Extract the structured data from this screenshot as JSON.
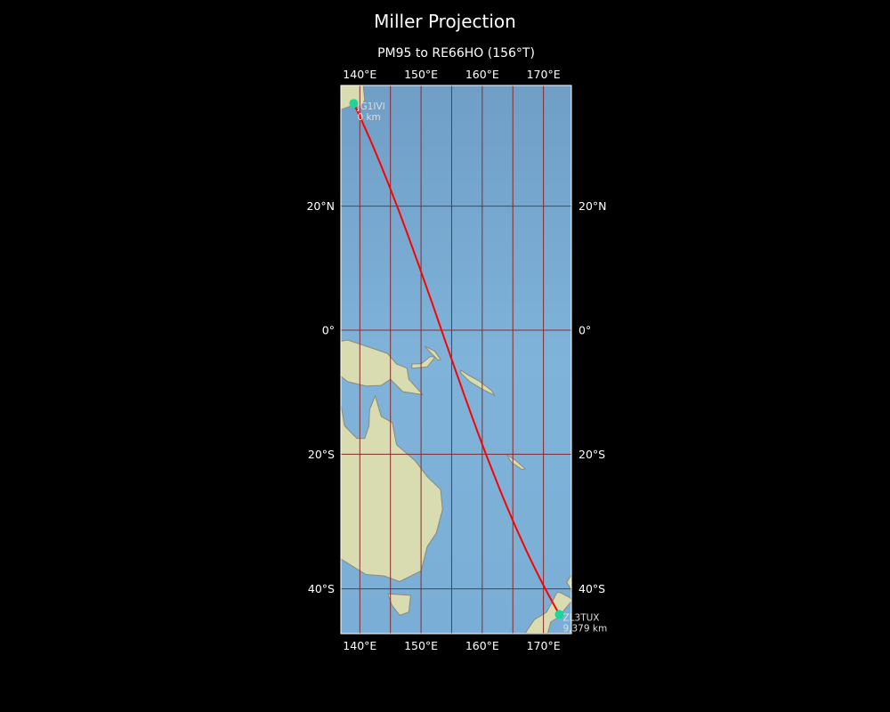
{
  "title": "Miller Projection",
  "subtitle": "PM95 to RE66HO (156°T)",
  "map": {
    "projection": "Miller",
    "extent": {
      "lon": [
        136.9,
        174.7
      ],
      "lat": [
        -45.7,
        38.0
      ]
    },
    "lon_ticks": [
      {
        "value": 140,
        "label": "140°E"
      },
      {
        "value": 150,
        "label": "150°E"
      },
      {
        "value": 160,
        "label": "160°E"
      },
      {
        "value": 170,
        "label": "170°E"
      }
    ],
    "lat_ticks": [
      {
        "value": 20,
        "label": "20°N"
      },
      {
        "value": 0,
        "label": "0°"
      },
      {
        "value": -20,
        "label": "20°S"
      },
      {
        "value": -40,
        "label": "40°S"
      }
    ],
    "graticule": {
      "lon_step": 5,
      "lat_step": 20,
      "color": "#8b2a2a"
    },
    "route_color": "#ff0000",
    "marker_color": "#1fd49a",
    "ocean_color": "#78a9cf",
    "land_color": "#d9dcb0",
    "stations": [
      {
        "call": "JG1IVI",
        "distance": "0 km",
        "lon": 139.0,
        "lat": 35.5
      },
      {
        "call": "ZL3TUX",
        "distance": "9,379 km",
        "lon": 172.6,
        "lat": -43.5
      }
    ]
  }
}
